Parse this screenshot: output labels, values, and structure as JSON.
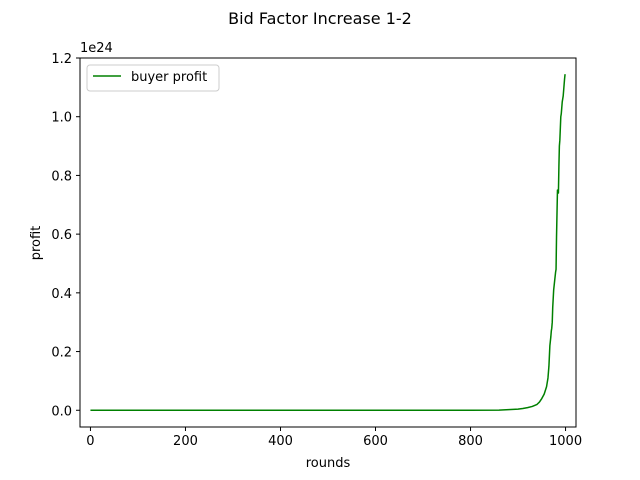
{
  "chart_data": {
    "type": "line",
    "title": "Bid Factor Increase 1-2",
    "xlabel": "rounds",
    "ylabel": "profit",
    "y_offset_label": "1e24",
    "xlim": [
      -22,
      1022
    ],
    "ylim": [
      -0.057,
      1.2
    ],
    "xticks": [
      0,
      200,
      400,
      600,
      800,
      1000
    ],
    "xtick_labels": [
      "0",
      "200",
      "400",
      "600",
      "800",
      "1000"
    ],
    "yticks": [
      0.0,
      0.2,
      0.4,
      0.6,
      0.8,
      1.0,
      1.2
    ],
    "ytick_labels": [
      "0.0",
      "0.2",
      "0.4",
      "0.6",
      "0.8",
      "1.0",
      "1.2"
    ],
    "grid": false,
    "legend_position": "upper-left",
    "colors": {
      "series": "#008000",
      "axes": "#000000",
      "background": "#ffffff"
    },
    "series": [
      {
        "name": "buyer profit",
        "color": "#008000",
        "x": [
          0,
          100,
          200,
          300,
          400,
          500,
          600,
          700,
          800,
          860,
          880,
          900,
          910,
          920,
          930,
          940,
          945,
          950,
          955,
          960,
          963,
          965,
          967,
          969,
          970,
          971,
          972,
          973,
          975,
          977,
          979,
          980,
          981,
          983,
          985,
          986,
          987,
          988,
          990,
          991,
          992,
          993,
          995,
          996,
          997,
          998,
          999
        ],
        "values": [
          0,
          0,
          0,
          0,
          0,
          0,
          0,
          0,
          0,
          0.0005,
          0.002,
          0.004,
          0.006,
          0.009,
          0.013,
          0.02,
          0.028,
          0.04,
          0.055,
          0.08,
          0.11,
          0.15,
          0.22,
          0.25,
          0.27,
          0.28,
          0.3,
          0.35,
          0.41,
          0.44,
          0.47,
          0.48,
          0.59,
          0.75,
          0.74,
          0.83,
          0.9,
          0.92,
          1.0,
          1.01,
          1.03,
          1.05,
          1.07,
          1.09,
          1.11,
          1.13,
          1.145
        ]
      }
    ]
  }
}
